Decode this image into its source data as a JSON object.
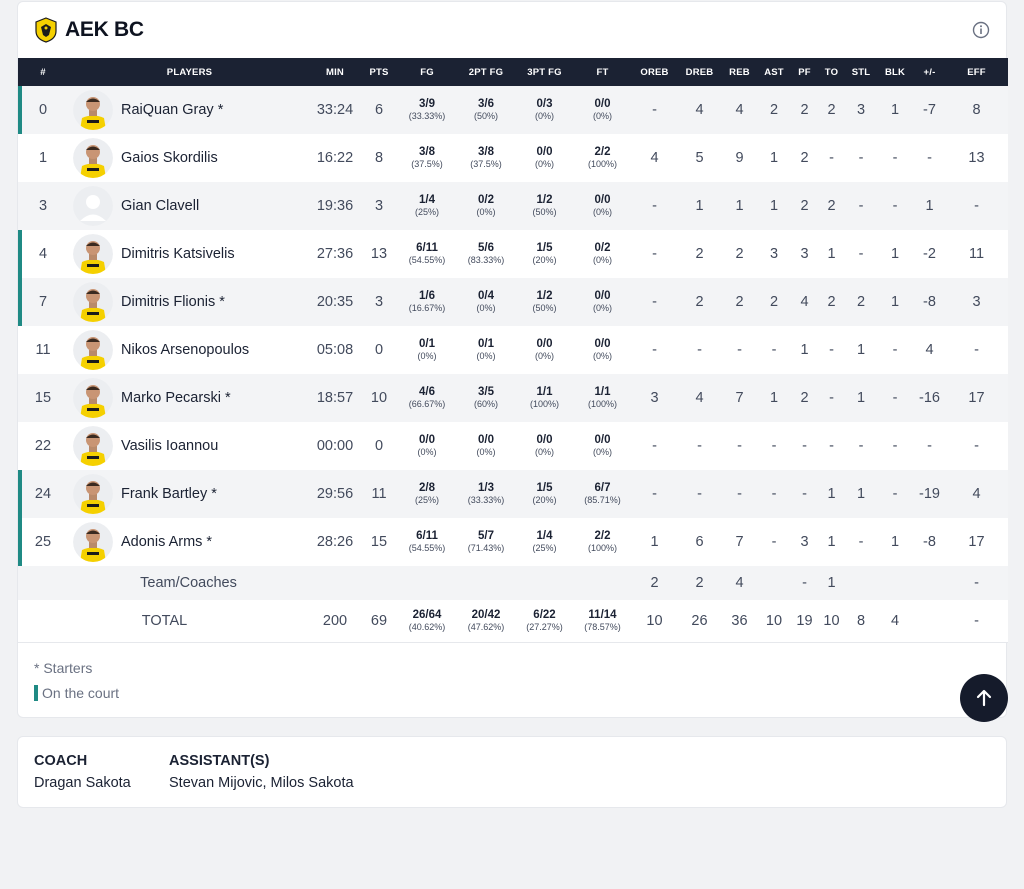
{
  "team": {
    "name": "AEK BC",
    "logo": "aek-eagle-logo",
    "accent": "#f5d000",
    "header_bg": "#1b2233",
    "oncourt_color": "#1f8a84"
  },
  "columns": [
    "#",
    "PLAYERS",
    "MIN",
    "PTS",
    "FG",
    "2PT FG",
    "3PT FG",
    "FT",
    "OREB",
    "DREB",
    "REB",
    "AST",
    "PF",
    "TO",
    "STL",
    "BLK",
    "+/-",
    "EFF"
  ],
  "players": [
    {
      "num": "0",
      "name": "RaiQuan Gray *",
      "oncourt": true,
      "min": "33:24",
      "pts": "6",
      "fg": "3/9",
      "fg_pct": "(33.33%)",
      "fg2": "3/6",
      "fg2_pct": "(50%)",
      "fg3": "0/3",
      "fg3_pct": "(0%)",
      "ft": "0/0",
      "ft_pct": "(0%)",
      "oreb": "-",
      "dreb": "4",
      "reb": "4",
      "ast": "2",
      "pf": "2",
      "to": "2",
      "stl": "3",
      "blk": "1",
      "pm": "-7",
      "eff": "8"
    },
    {
      "num": "1",
      "name": "Gaios Skordilis",
      "oncourt": false,
      "min": "16:22",
      "pts": "8",
      "fg": "3/8",
      "fg_pct": "(37.5%)",
      "fg2": "3/8",
      "fg2_pct": "(37.5%)",
      "fg3": "0/0",
      "fg3_pct": "(0%)",
      "ft": "2/2",
      "ft_pct": "(100%)",
      "oreb": "4",
      "dreb": "5",
      "reb": "9",
      "ast": "1",
      "pf": "2",
      "to": "-",
      "stl": "-",
      "blk": "-",
      "pm": "-",
      "eff": "13"
    },
    {
      "num": "3",
      "name": "Gian Clavell",
      "oncourt": false,
      "placeholder": true,
      "min": "19:36",
      "pts": "3",
      "fg": "1/4",
      "fg_pct": "(25%)",
      "fg2": "0/2",
      "fg2_pct": "(0%)",
      "fg3": "1/2",
      "fg3_pct": "(50%)",
      "ft": "0/0",
      "ft_pct": "(0%)",
      "oreb": "-",
      "dreb": "1",
      "reb": "1",
      "ast": "1",
      "pf": "2",
      "to": "2",
      "stl": "-",
      "blk": "-",
      "pm": "1",
      "eff": "-"
    },
    {
      "num": "4",
      "name": "Dimitris Katsivelis",
      "oncourt": true,
      "min": "27:36",
      "pts": "13",
      "fg": "6/11",
      "fg_pct": "(54.55%)",
      "fg2": "5/6",
      "fg2_pct": "(83.33%)",
      "fg3": "1/5",
      "fg3_pct": "(20%)",
      "ft": "0/2",
      "ft_pct": "(0%)",
      "oreb": "-",
      "dreb": "2",
      "reb": "2",
      "ast": "3",
      "pf": "3",
      "to": "1",
      "stl": "-",
      "blk": "1",
      "pm": "-2",
      "eff": "11"
    },
    {
      "num": "7",
      "name": "Dimitris Flionis *",
      "oncourt": true,
      "min": "20:35",
      "pts": "3",
      "fg": "1/6",
      "fg_pct": "(16.67%)",
      "fg2": "0/4",
      "fg2_pct": "(0%)",
      "fg3": "1/2",
      "fg3_pct": "(50%)",
      "ft": "0/0",
      "ft_pct": "(0%)",
      "oreb": "-",
      "dreb": "2",
      "reb": "2",
      "ast": "2",
      "pf": "4",
      "to": "2",
      "stl": "2",
      "blk": "1",
      "pm": "-8",
      "eff": "3"
    },
    {
      "num": "11",
      "name": "Nikos Arsenopoulos",
      "oncourt": false,
      "min": "05:08",
      "pts": "0",
      "fg": "0/1",
      "fg_pct": "(0%)",
      "fg2": "0/1",
      "fg2_pct": "(0%)",
      "fg3": "0/0",
      "fg3_pct": "(0%)",
      "ft": "0/0",
      "ft_pct": "(0%)",
      "oreb": "-",
      "dreb": "-",
      "reb": "-",
      "ast": "-",
      "pf": "1",
      "to": "-",
      "stl": "1",
      "blk": "-",
      "pm": "4",
      "eff": "-"
    },
    {
      "num": "15",
      "name": "Marko Pecarski *",
      "oncourt": false,
      "min": "18:57",
      "pts": "10",
      "fg": "4/6",
      "fg_pct": "(66.67%)",
      "fg2": "3/5",
      "fg2_pct": "(60%)",
      "fg3": "1/1",
      "fg3_pct": "(100%)",
      "ft": "1/1",
      "ft_pct": "(100%)",
      "oreb": "3",
      "dreb": "4",
      "reb": "7",
      "ast": "1",
      "pf": "2",
      "to": "-",
      "stl": "1",
      "blk": "-",
      "pm": "-16",
      "eff": "17"
    },
    {
      "num": "22",
      "name": "Vasilis Ioannou",
      "oncourt": false,
      "min": "00:00",
      "pts": "0",
      "fg": "0/0",
      "fg_pct": "(0%)",
      "fg2": "0/0",
      "fg2_pct": "(0%)",
      "fg3": "0/0",
      "fg3_pct": "(0%)",
      "ft": "0/0",
      "ft_pct": "(0%)",
      "oreb": "-",
      "dreb": "-",
      "reb": "-",
      "ast": "-",
      "pf": "-",
      "to": "-",
      "stl": "-",
      "blk": "-",
      "pm": "-",
      "eff": "-"
    },
    {
      "num": "24",
      "name": "Frank Bartley *",
      "oncourt": true,
      "min": "29:56",
      "pts": "11",
      "fg": "2/8",
      "fg_pct": "(25%)",
      "fg2": "1/3",
      "fg2_pct": "(33.33%)",
      "fg3": "1/5",
      "fg3_pct": "(20%)",
      "ft": "6/7",
      "ft_pct": "(85.71%)",
      "oreb": "-",
      "dreb": "-",
      "reb": "-",
      "ast": "-",
      "pf": "-",
      "to": "1",
      "stl": "1",
      "blk": "-",
      "pm": "-19",
      "eff": "4"
    },
    {
      "num": "25",
      "name": "Adonis Arms *",
      "oncourt": true,
      "min": "28:26",
      "pts": "15",
      "fg": "6/11",
      "fg_pct": "(54.55%)",
      "fg2": "5/7",
      "fg2_pct": "(71.43%)",
      "fg3": "1/4",
      "fg3_pct": "(25%)",
      "ft": "2/2",
      "ft_pct": "(100%)",
      "oreb": "1",
      "dreb": "6",
      "reb": "7",
      "ast": "-",
      "pf": "3",
      "to": "1",
      "stl": "-",
      "blk": "1",
      "pm": "-8",
      "eff": "17"
    }
  ],
  "team_row": {
    "label": "Team/Coaches",
    "oreb": "2",
    "dreb": "2",
    "reb": "4",
    "pf": "-",
    "to": "1",
    "eff": "-"
  },
  "total_row": {
    "label": "TOTAL",
    "min": "200",
    "pts": "69",
    "fg": "26/64",
    "fg_pct": "(40.62%)",
    "fg2": "20/42",
    "fg2_pct": "(47.62%)",
    "fg3": "6/22",
    "fg3_pct": "(27.27%)",
    "ft": "11/14",
    "ft_pct": "(78.57%)",
    "oreb": "10",
    "dreb": "26",
    "reb": "36",
    "ast": "10",
    "pf": "19",
    "to": "10",
    "stl": "8",
    "blk": "4",
    "eff": "-"
  },
  "legend": {
    "starters": "* Starters",
    "on_court": "On the court"
  },
  "coaches": {
    "coach_title": "COACH",
    "coach_name": "Dragan Sakota",
    "assistants_title": "ASSISTANT(S)",
    "assistants": "Stevan Mijovic, Milos Sakota"
  },
  "icons": {
    "info": "info-icon",
    "scroll_top": "arrow-up-icon"
  }
}
